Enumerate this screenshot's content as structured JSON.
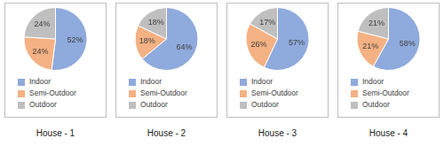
{
  "chart_data": [
    {
      "type": "pie",
      "title": "House - 1",
      "categories": [
        "Indoor",
        "Semi-Outdoor",
        "Outdoor"
      ],
      "values": [
        52,
        24,
        24
      ],
      "value_labels": [
        "52%",
        "24%",
        "24%"
      ],
      "colors": [
        "#8faadc",
        "#f4b183",
        "#bfbfbf"
      ],
      "data_labels": true,
      "legend": "bottom"
    },
    {
      "type": "pie",
      "title": "House - 2",
      "categories": [
        "Indoor",
        "Semi-Outdoor",
        "Outdoor"
      ],
      "values": [
        64,
        18,
        18
      ],
      "value_labels": [
        "64%",
        "18%",
        "18%"
      ],
      "colors": [
        "#8faadc",
        "#f4b183",
        "#bfbfbf"
      ],
      "data_labels": true,
      "legend": "bottom"
    },
    {
      "type": "pie",
      "title": "House - 3",
      "categories": [
        "Indoor",
        "Semi-Outdoor",
        "Outdoor"
      ],
      "values": [
        57,
        26,
        17
      ],
      "value_labels": [
        "57%",
        "26%",
        "17%"
      ],
      "colors": [
        "#8faadc",
        "#f4b183",
        "#bfbfbf"
      ],
      "data_labels": true,
      "legend": "bottom"
    },
    {
      "type": "pie",
      "title": "House - 4",
      "categories": [
        "Indoor",
        "Semi-Outdoor",
        "Outdoor"
      ],
      "values": [
        58,
        21,
        21
      ],
      "value_labels": [
        "58%",
        "21%",
        "21%"
      ],
      "colors": [
        "#8faadc",
        "#f4b183",
        "#bfbfbf"
      ],
      "data_labels": true,
      "legend": "bottom"
    }
  ]
}
